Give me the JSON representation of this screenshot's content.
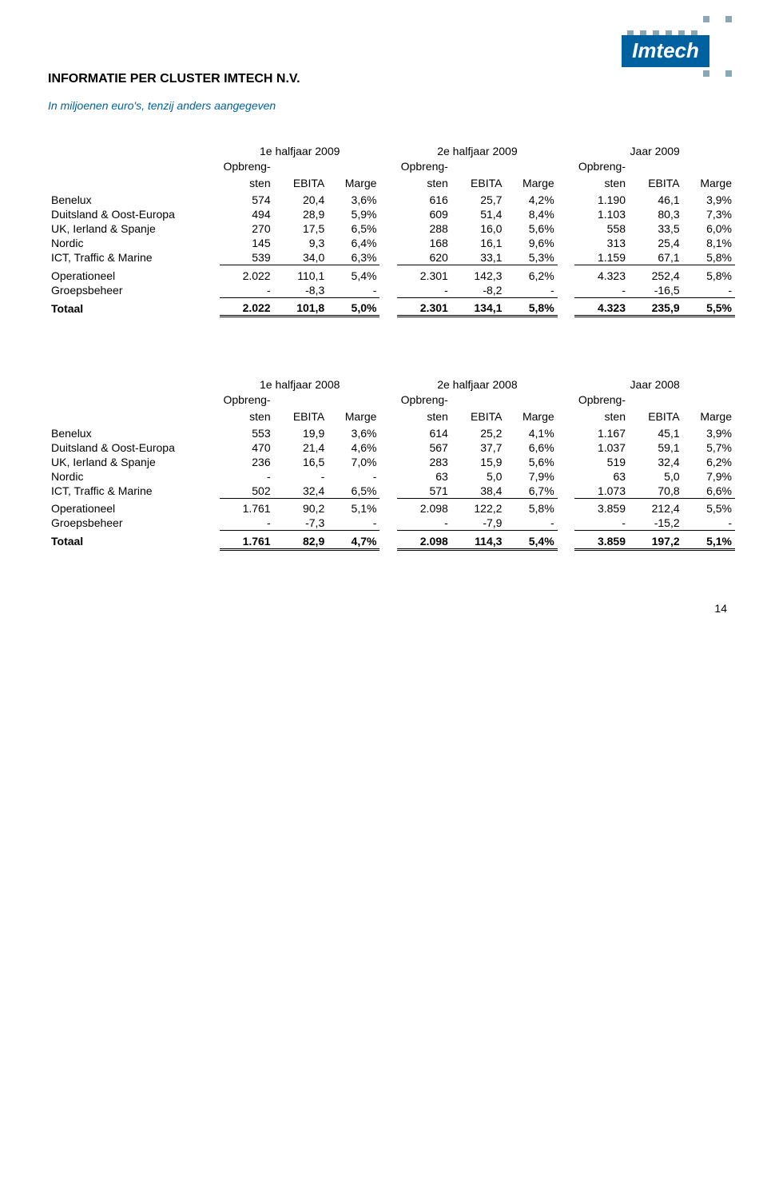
{
  "page_number": "14",
  "title": "INFORMATIE PER CLUSTER IMTECH N.V.",
  "subtitle": "In miljoenen euro's, tenzij anders aangegeven",
  "logo": {
    "text": "Imtech",
    "bg_color": "#0061a0",
    "fg_color": "#ffffff",
    "dot_color": "#8aa7b7"
  },
  "subtitle_color": "#0061a0",
  "periods_labels": {
    "h1": "1e halfjaar",
    "h2": "2e halfjaar",
    "yr": "Jaar"
  },
  "col_labels": {
    "opbreng_top": "Opbreng-",
    "opbreng_bot": "sten",
    "ebita": "EBITA",
    "marge": "Marge"
  },
  "row_labels": {
    "benelux": "Benelux",
    "duitsland": "Duitsland & Oost-Europa",
    "uk": "UK, Ierland & Spanje",
    "nordic": "Nordic",
    "ict": "ICT, Traffic & Marine",
    "operationeel": "Operationeel",
    "groepsbeheer": "Groepsbeheer",
    "totaal": "Totaal"
  },
  "tables": [
    {
      "year": "2009",
      "benelux": [
        "574",
        "20,4",
        "3,6%",
        "616",
        "25,7",
        "4,2%",
        "1.190",
        "46,1",
        "3,9%"
      ],
      "duitsland": [
        "494",
        "28,9",
        "5,9%",
        "609",
        "51,4",
        "8,4%",
        "1.103",
        "80,3",
        "7,3%"
      ],
      "uk": [
        "270",
        "17,5",
        "6,5%",
        "288",
        "16,0",
        "5,6%",
        "558",
        "33,5",
        "6,0%"
      ],
      "nordic": [
        "145",
        "9,3",
        "6,4%",
        "168",
        "16,1",
        "9,6%",
        "313",
        "25,4",
        "8,1%"
      ],
      "ict": [
        "539",
        "34,0",
        "6,3%",
        "620",
        "33,1",
        "5,3%",
        "1.159",
        "67,1",
        "5,8%"
      ],
      "operationeel": [
        "2.022",
        "110,1",
        "5,4%",
        "2.301",
        "142,3",
        "6,2%",
        "4.323",
        "252,4",
        "5,8%"
      ],
      "groepsbeheer": [
        "-",
        "-8,3",
        "-",
        "-",
        "-8,2",
        "-",
        "-",
        "-16,5",
        "-"
      ],
      "totaal": [
        "2.022",
        "101,8",
        "5,0%",
        "2.301",
        "134,1",
        "5,8%",
        "4.323",
        "235,9",
        "5,5%"
      ]
    },
    {
      "year": "2008",
      "benelux": [
        "553",
        "19,9",
        "3,6%",
        "614",
        "25,2",
        "4,1%",
        "1.167",
        "45,1",
        "3,9%"
      ],
      "duitsland": [
        "470",
        "21,4",
        "4,6%",
        "567",
        "37,7",
        "6,6%",
        "1.037",
        "59,1",
        "5,7%"
      ],
      "uk": [
        "236",
        "16,5",
        "7,0%",
        "283",
        "15,9",
        "5,6%",
        "519",
        "32,4",
        "6,2%"
      ],
      "nordic": [
        "-",
        "-",
        "-",
        "63",
        "5,0",
        "7,9%",
        "63",
        "5,0",
        "7,9%"
      ],
      "ict": [
        "502",
        "32,4",
        "6,5%",
        "571",
        "38,4",
        "6,7%",
        "1.073",
        "70,8",
        "6,6%"
      ],
      "operationeel": [
        "1.761",
        "90,2",
        "5,1%",
        "2.098",
        "122,2",
        "5,8%",
        "3.859",
        "212,4",
        "5,5%"
      ],
      "groepsbeheer": [
        "-",
        "-7,3",
        "-",
        "-",
        "-7,9",
        "-",
        "-",
        "-15,2",
        "-"
      ],
      "totaal": [
        "1.761",
        "82,9",
        "4,7%",
        "2.098",
        "114,3",
        "5,4%",
        "3.859",
        "197,2",
        "5,1%"
      ]
    }
  ]
}
